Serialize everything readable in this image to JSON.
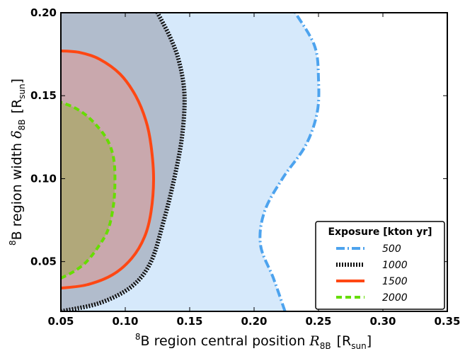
{
  "chart_data": {
    "type": "area",
    "xlabel": {
      "prefix": "8",
      "main": "B region central position ",
      "sym": "R",
      "symsub": "8B",
      "unit": "[R",
      "unitsub": "sun",
      "close": "]"
    },
    "ylabel": {
      "prefix": "8",
      "main": "B region width ",
      "sym": "δ",
      "symsub": "8B",
      "unit": "[R",
      "unitsub": "sun",
      "close": "]"
    },
    "xlim": [
      0.05,
      0.35
    ],
    "ylim": [
      0.02,
      0.2
    ],
    "x_ticks": [
      "0.05",
      "0.10",
      "0.15",
      "0.20",
      "0.25",
      "0.30",
      "0.35"
    ],
    "y_ticks": [
      "0.05",
      "0.10",
      "0.15",
      "0.20"
    ],
    "legend_title": "Exposure [kton yr]",
    "legend_placement": "bottom-right",
    "series": [
      {
        "name": "500",
        "color": "#4da3ee",
        "fill": "#d6e9fb",
        "style": "dash-dot",
        "boundary": [
          [
            0.224,
            0.02
          ],
          [
            0.215,
            0.04
          ],
          [
            0.205,
            0.06
          ],
          [
            0.208,
            0.08
          ],
          [
            0.222,
            0.1
          ],
          [
            0.24,
            0.12
          ],
          [
            0.249,
            0.14
          ],
          [
            0.25,
            0.16
          ],
          [
            0.247,
            0.18
          ],
          [
            0.232,
            0.2
          ]
        ]
      },
      {
        "name": "1000",
        "color": "#111111",
        "fill": "#b1bccc",
        "style": "dotted",
        "boundary": [
          [
            0.05,
            0.02
          ],
          [
            0.08,
            0.025
          ],
          [
            0.105,
            0.035
          ],
          [
            0.12,
            0.05
          ],
          [
            0.13,
            0.075
          ],
          [
            0.138,
            0.1
          ],
          [
            0.144,
            0.125
          ],
          [
            0.146,
            0.15
          ],
          [
            0.142,
            0.17
          ],
          [
            0.135,
            0.185
          ],
          [
            0.125,
            0.2
          ]
        ]
      },
      {
        "name": "1500",
        "color": "#ff4713",
        "fill": "#c9a8ad",
        "style": "solid",
        "boundary": [
          [
            0.05,
            0.034
          ],
          [
            0.07,
            0.036
          ],
          [
            0.09,
            0.042
          ],
          [
            0.105,
            0.052
          ],
          [
            0.115,
            0.065
          ],
          [
            0.12,
            0.08
          ],
          [
            0.122,
            0.1
          ],
          [
            0.12,
            0.12
          ],
          [
            0.116,
            0.135
          ],
          [
            0.108,
            0.15
          ],
          [
            0.096,
            0.163
          ],
          [
            0.08,
            0.172
          ],
          [
            0.065,
            0.176
          ],
          [
            0.05,
            0.177
          ]
        ]
      },
      {
        "name": "2000",
        "color": "#66dd00",
        "fill": "#b1a87a",
        "style": "dashed",
        "boundary": [
          [
            0.05,
            0.04
          ],
          [
            0.06,
            0.044
          ],
          [
            0.07,
            0.05
          ],
          [
            0.08,
            0.06
          ],
          [
            0.087,
            0.07
          ],
          [
            0.091,
            0.085
          ],
          [
            0.092,
            0.1
          ],
          [
            0.091,
            0.112
          ],
          [
            0.087,
            0.122
          ],
          [
            0.08,
            0.13
          ],
          [
            0.07,
            0.138
          ],
          [
            0.06,
            0.143
          ],
          [
            0.05,
            0.146
          ]
        ]
      }
    ]
  }
}
